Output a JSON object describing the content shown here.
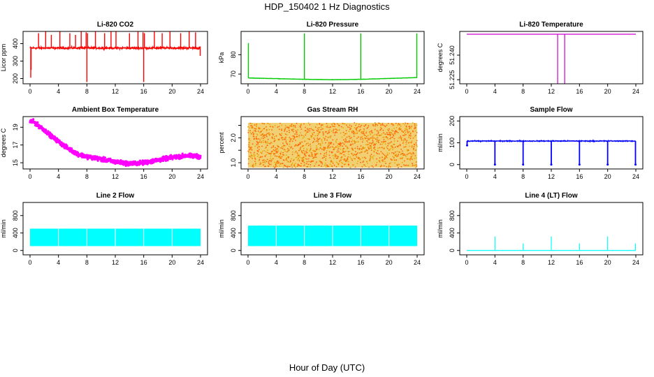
{
  "figure": {
    "title": "HDP_150402  1 Hz Diagnostics",
    "xlabel": "Hour of Day (UTC)"
  },
  "chart_data": [
    {
      "type": "line",
      "title": "Li-820 CO2",
      "ylabel": "Licor ppm",
      "color": "#ff0000",
      "xlim": [
        0,
        24
      ],
      "xticks": [
        0,
        4,
        8,
        12,
        16,
        20,
        24
      ],
      "ylim": [
        170,
        470
      ],
      "yticks": [
        200,
        300,
        400
      ],
      "baseline": 375,
      "noise": 8,
      "spike_width": 0.02,
      "spikes": [
        [
          0.15,
          250
        ],
        [
          0.1,
          205
        ],
        [
          1.2,
          460
        ],
        [
          2.2,
          470
        ],
        [
          3.0,
          450
        ],
        [
          4.2,
          470
        ],
        [
          5.6,
          460
        ],
        [
          6.4,
          450
        ],
        [
          7.2,
          470
        ],
        [
          7.9,
          465
        ],
        [
          8.0,
          180
        ],
        [
          8.1,
          460
        ],
        [
          9.2,
          470
        ],
        [
          10.5,
          460
        ],
        [
          11.4,
          470
        ],
        [
          12.1,
          470
        ],
        [
          14.0,
          460
        ],
        [
          15.2,
          470
        ],
        [
          15.9,
          465
        ],
        [
          16.0,
          180
        ],
        [
          16.1,
          460
        ],
        [
          17.5,
          470
        ],
        [
          18.6,
          460
        ],
        [
          19.7,
          470
        ],
        [
          21.2,
          460
        ],
        [
          22.4,
          470
        ],
        [
          23.3,
          465
        ],
        [
          23.95,
          330
        ]
      ]
    },
    {
      "type": "line",
      "title": "Li-820 Pressure",
      "ylabel": "kPa",
      "color": "#00cc00",
      "xlim": [
        0,
        24
      ],
      "xticks": [
        0,
        4,
        8,
        12,
        16,
        20,
        24
      ],
      "ylim": [
        65,
        92
      ],
      "yticks": [
        70,
        80
      ],
      "baseline_points": [
        [
          0,
          68
        ],
        [
          8,
          67.3
        ],
        [
          12,
          67.1
        ],
        [
          16,
          67.3
        ],
        [
          24,
          68.2
        ]
      ],
      "noise": 0.1,
      "spike_width": 0.05,
      "spikes": [
        [
          0.05,
          86
        ],
        [
          8.0,
          91
        ],
        [
          16.0,
          91
        ],
        [
          23.95,
          91
        ]
      ]
    },
    {
      "type": "line",
      "title": "Li-820 Temperature",
      "ylabel": "degrees C",
      "color": "#cc00cc",
      "xlim": [
        0,
        24
      ],
      "xticks": [
        0,
        4,
        8,
        12,
        16,
        20,
        24
      ],
      "ylim": [
        51.2225,
        51.2545
      ],
      "yticks": [
        51.225,
        51.24
      ],
      "ytick_labels": [
        "51.225",
        "51.240"
      ],
      "baseline": 51.2528,
      "dips": [
        [
          12.9,
          51.2225
        ],
        [
          13.9,
          51.2225
        ]
      ]
    },
    {
      "type": "scatter",
      "title": "Ambient Box Temperature",
      "ylabel": "degrees C",
      "color": "#ff00ff",
      "xlim": [
        0,
        24
      ],
      "xticks": [
        0,
        4,
        8,
        12,
        16,
        20,
        24
      ],
      "ylim": [
        14.3,
        20.2
      ],
      "yticks": [
        15,
        17,
        19
      ],
      "curve": [
        [
          0,
          19.7
        ],
        [
          0.5,
          19.6
        ],
        [
          1,
          19.3
        ],
        [
          2,
          18.7
        ],
        [
          3,
          18.0
        ],
        [
          4,
          17.4
        ],
        [
          5,
          16.8
        ],
        [
          6,
          16.3
        ],
        [
          7,
          15.9
        ],
        [
          8,
          15.7
        ],
        [
          10,
          15.4
        ],
        [
          12,
          15.1
        ],
        [
          14,
          14.9
        ],
        [
          16,
          15.0
        ],
        [
          18,
          15.3
        ],
        [
          20,
          15.6
        ],
        [
          22,
          15.8
        ],
        [
          24,
          15.7
        ]
      ],
      "noise": 0.35
    },
    {
      "type": "scatter",
      "title": "Gas Stream RH",
      "ylabel": "percent",
      "color": "#e6a800",
      "color2": "#ff6600",
      "xlim": [
        0,
        24
      ],
      "xticks": [
        0,
        4,
        8,
        12,
        16,
        20,
        24
      ],
      "ylim": [
        0.75,
        2.85
      ],
      "yticks": [
        1.0,
        1.5,
        2.0,
        2.5
      ],
      "ytick_labels": [
        "1.0",
        "",
        "2.0",
        ""
      ],
      "band": [
        0.8,
        2.6
      ]
    },
    {
      "type": "line",
      "title": "Sample Flow",
      "ylabel": "ml/min",
      "color": "#0000ff",
      "xlim": [
        0,
        24
      ],
      "xticks": [
        0,
        4,
        8,
        12,
        16,
        20,
        24
      ],
      "ylim": [
        -20,
        220
      ],
      "yticks": [
        0,
        100,
        200
      ],
      "baseline": 108,
      "noise": 3,
      "dips": [
        [
          0.05,
          88
        ],
        [
          4.0,
          0
        ],
        [
          8.0,
          0
        ],
        [
          12.0,
          0
        ],
        [
          16.0,
          0
        ],
        [
          20.0,
          0
        ],
        [
          23.95,
          0
        ]
      ]
    },
    {
      "type": "area",
      "title": "Line 2 Flow",
      "ylabel": "ml/min",
      "color": "#00ffff",
      "xlim": [
        0,
        24
      ],
      "xticks": [
        0,
        4,
        8,
        12,
        16,
        20,
        24
      ],
      "ylim": [
        -100,
        1100
      ],
      "yticks": [
        0,
        400,
        800
      ],
      "band": [
        100,
        500
      ],
      "gaps": [
        4,
        8,
        12,
        16,
        20
      ]
    },
    {
      "type": "area",
      "title": "Line 3 Flow",
      "ylabel": "ml/min",
      "color": "#00ffff",
      "xlim": [
        0,
        24
      ],
      "xticks": [
        0,
        4,
        8,
        12,
        16,
        20,
        24
      ],
      "ylim": [
        -100,
        1100
      ],
      "yticks": [
        0,
        400,
        800
      ],
      "band": [
        100,
        570
      ],
      "gaps": [
        4,
        8,
        12,
        16,
        20
      ]
    },
    {
      "type": "line",
      "title": "Line 4 (LT) Flow",
      "ylabel": "ml/min",
      "color": "#00ffff",
      "xlim": [
        0,
        24
      ],
      "xticks": [
        0,
        4,
        8,
        12,
        16,
        20,
        24
      ],
      "ylim": [
        -100,
        1100
      ],
      "yticks": [
        0,
        400,
        800
      ],
      "baseline": 0,
      "spikes": [
        [
          4.0,
          320
        ],
        [
          8.0,
          160
        ],
        [
          12.0,
          320
        ],
        [
          16.0,
          160
        ],
        [
          20.0,
          320
        ],
        [
          23.95,
          160
        ]
      ]
    }
  ]
}
